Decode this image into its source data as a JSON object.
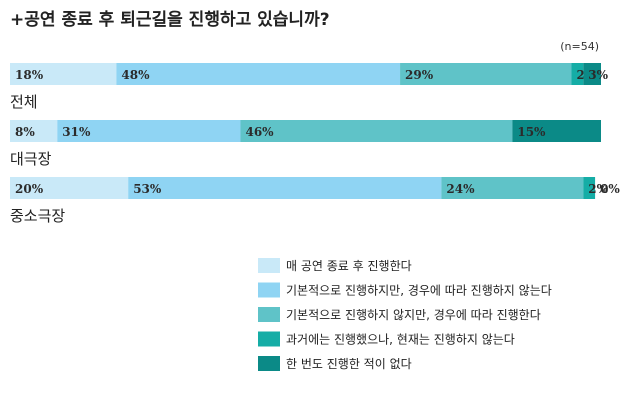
{
  "chart_data": {
    "type": "bar",
    "stacked": true,
    "orientation": "horizontal",
    "title": "+공연 종료 후 퇴근길을 진행하고 있습니까?",
    "note": "(n=54)",
    "categories": [
      "전체",
      "대극장",
      "중소극장"
    ],
    "value_suffix": "%",
    "xlim": [
      0,
      100
    ],
    "legend_position": "bottom-right",
    "series": [
      {
        "name": "매 공연 종료 후 진행한다",
        "color": "#c9e9f8",
        "values": [
          18,
          8,
          20
        ]
      },
      {
        "name": "기본적으로 진행하지만, 경우에 따라 진행하지 않는다",
        "color": "#8fd4f3",
        "values": [
          48,
          31,
          53
        ]
      },
      {
        "name": "기본적으로 진행하지 않지만, 경우에 따라 진행한다",
        "color": "#5fc3c8",
        "values": [
          29,
          46,
          24
        ]
      },
      {
        "name": "과거에는 진행했으나, 현재는 진행하지 않는다",
        "color": "#15ada6",
        "values": [
          2,
          0,
          2
        ]
      },
      {
        "name": "한 번도 진행한 적이 없다",
        "color": "#0b8a87",
        "values": [
          3,
          15,
          0
        ]
      }
    ]
  }
}
